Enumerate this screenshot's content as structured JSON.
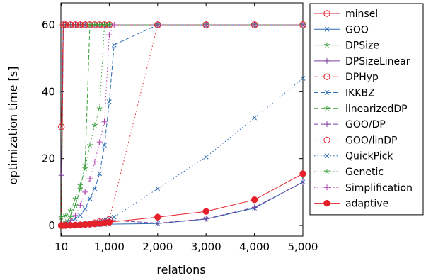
{
  "chart_data": {
    "type": "line",
    "xlabel": "relations",
    "ylabel": "optimization time [s]",
    "xlim": [
      0,
      5000
    ],
    "ylim": [
      0,
      60
    ],
    "x_ticks": [
      10,
      1000,
      2000,
      3000,
      4000,
      5000
    ],
    "x_tick_labels": [
      "10",
      "1,000",
      "2,000",
      "3,000",
      "4,000",
      "5,000"
    ],
    "y_ticks": [
      0,
      20,
      40,
      60
    ],
    "y_tick_labels": [
      "0",
      "20",
      "40",
      "60"
    ],
    "grid": false,
    "legend_position": "right-outside",
    "series": [
      {
        "name": "minsel",
        "color": "#e4202b",
        "dash": "solid",
        "marker": "circle-open",
        "points": [
          [
            10,
            29.5
          ],
          [
            50,
            60
          ],
          [
            100,
            60
          ],
          [
            200,
            60
          ],
          [
            300,
            60
          ],
          [
            400,
            60
          ],
          [
            500,
            60
          ],
          [
            600,
            60
          ],
          [
            700,
            60
          ],
          [
            800,
            60
          ],
          [
            900,
            60
          ],
          [
            1000,
            60
          ],
          [
            2000,
            60
          ],
          [
            3000,
            60
          ],
          [
            4000,
            60
          ],
          [
            5000,
            60
          ]
        ]
      },
      {
        "name": "GOO",
        "color": "#2a6bb3",
        "dash": "solid",
        "marker": "x",
        "points": [
          [
            10,
            0
          ],
          [
            50,
            0
          ],
          [
            100,
            0
          ],
          [
            200,
            0.02
          ],
          [
            300,
            0.05
          ],
          [
            400,
            0.1
          ],
          [
            500,
            0.15
          ],
          [
            600,
            0.2
          ],
          [
            700,
            0.25
          ],
          [
            800,
            0.3
          ],
          [
            900,
            0.35
          ],
          [
            1000,
            0.4
          ],
          [
            2000,
            0.6
          ],
          [
            3000,
            1.9
          ],
          [
            4000,
            5.2
          ],
          [
            5000,
            13
          ]
        ]
      },
      {
        "name": "DPSize",
        "color": "#3a9e3a",
        "dash": "solid",
        "marker": "star",
        "points": [
          [
            10,
            0
          ],
          [
            50,
            60
          ],
          [
            100,
            60
          ],
          [
            200,
            60
          ],
          [
            300,
            60
          ],
          [
            400,
            60
          ],
          [
            500,
            60
          ],
          [
            600,
            60
          ],
          [
            700,
            60
          ],
          [
            800,
            60
          ],
          [
            900,
            60
          ],
          [
            1000,
            60
          ],
          [
            2000,
            60
          ],
          [
            3000,
            60
          ],
          [
            4000,
            60
          ],
          [
            5000,
            60
          ]
        ]
      },
      {
        "name": "DPSizeLinear",
        "color": "#7b3fa0",
        "dash": "solid",
        "marker": "plus",
        "points": [
          [
            10,
            15
          ],
          [
            50,
            60
          ],
          [
            100,
            60
          ],
          [
            200,
            60
          ],
          [
            300,
            60
          ],
          [
            400,
            60
          ],
          [
            500,
            60
          ],
          [
            600,
            60
          ],
          [
            700,
            60
          ],
          [
            800,
            60
          ],
          [
            900,
            60
          ],
          [
            1000,
            60
          ],
          [
            2000,
            60
          ],
          [
            3000,
            60
          ],
          [
            4000,
            60
          ],
          [
            5000,
            60
          ]
        ]
      },
      {
        "name": "DPHyp",
        "color": "#e4202b",
        "dash": "dashed",
        "marker": "circle-open",
        "points": [
          [
            10,
            0.02
          ],
          [
            50,
            60
          ],
          [
            100,
            60
          ],
          [
            200,
            60
          ],
          [
            300,
            60
          ],
          [
            400,
            60
          ],
          [
            500,
            60
          ],
          [
            600,
            60
          ],
          [
            700,
            60
          ],
          [
            800,
            60
          ],
          [
            900,
            60
          ],
          [
            1000,
            60
          ],
          [
            2000,
            60
          ],
          [
            3000,
            60
          ],
          [
            4000,
            60
          ],
          [
            5000,
            60
          ]
        ]
      },
      {
        "name": "IKKBZ",
        "color": "#2a6bb3",
        "dash": "dashed",
        "marker": "x",
        "points": [
          [
            10,
            0
          ],
          [
            100,
            0.6
          ],
          [
            200,
            1.2
          ],
          [
            300,
            2
          ],
          [
            400,
            3
          ],
          [
            500,
            5
          ],
          [
            600,
            8
          ],
          [
            700,
            11
          ],
          [
            800,
            15.5
          ],
          [
            900,
            24
          ],
          [
            1000,
            37
          ],
          [
            1100,
            54
          ],
          [
            2000,
            60
          ],
          [
            3000,
            60
          ],
          [
            4000,
            60
          ],
          [
            5000,
            60
          ]
        ]
      },
      {
        "name": "linearizedDP",
        "color": "#3a9e3a",
        "dash": "dashed",
        "marker": "star",
        "points": [
          [
            10,
            0
          ],
          [
            100,
            1
          ],
          [
            200,
            2.5
          ],
          [
            300,
            6
          ],
          [
            400,
            11
          ],
          [
            500,
            18
          ],
          [
            600,
            60
          ],
          [
            700,
            60
          ],
          [
            800,
            60
          ],
          [
            900,
            60
          ],
          [
            1000,
            60
          ],
          [
            2000,
            60
          ],
          [
            3000,
            60
          ],
          [
            4000,
            60
          ],
          [
            5000,
            60
          ]
        ]
      },
      {
        "name": "GOO/DP",
        "color": "#7b3fa0",
        "dash": "dashed",
        "marker": "plus",
        "points": [
          [
            10,
            0
          ],
          [
            100,
            0.02
          ],
          [
            200,
            0.05
          ],
          [
            300,
            0.1
          ],
          [
            400,
            0.2
          ],
          [
            500,
            0.3
          ],
          [
            600,
            0.5
          ],
          [
            700,
            0.7
          ],
          [
            800,
            1
          ],
          [
            900,
            1.3
          ],
          [
            1000,
            1.6
          ],
          [
            2000,
            0.7
          ],
          [
            3000,
            2
          ],
          [
            4000,
            5.4
          ],
          [
            5000,
            13
          ]
        ]
      },
      {
        "name": "GOO/linDP",
        "color": "#e4202b",
        "dash": "dotted",
        "marker": "circle-open",
        "points": [
          [
            10,
            0
          ],
          [
            100,
            0.02
          ],
          [
            200,
            0.05
          ],
          [
            300,
            0.1
          ],
          [
            400,
            0.2
          ],
          [
            500,
            0.3
          ],
          [
            600,
            0.5
          ],
          [
            700,
            0.8
          ],
          [
            800,
            1.1
          ],
          [
            900,
            1.4
          ],
          [
            1000,
            1.8
          ],
          [
            2000,
            60
          ],
          [
            3000,
            60
          ],
          [
            4000,
            60
          ],
          [
            5000,
            60
          ]
        ]
      },
      {
        "name": "QuickPick",
        "color": "#2a6bb3",
        "dash": "dotted",
        "marker": "x",
        "points": [
          [
            10,
            0
          ],
          [
            100,
            0.1
          ],
          [
            200,
            0.2
          ],
          [
            300,
            0.3
          ],
          [
            400,
            0.4
          ],
          [
            500,
            0.5
          ],
          [
            600,
            0.7
          ],
          [
            700,
            0.9
          ],
          [
            800,
            1.1
          ],
          [
            900,
            1.5
          ],
          [
            1000,
            2
          ],
          [
            1100,
            2.5
          ],
          [
            2000,
            11
          ],
          [
            3000,
            20.5
          ],
          [
            4000,
            32.2
          ],
          [
            5000,
            44
          ]
        ]
      },
      {
        "name": "Genetic",
        "color": "#3a9e3a",
        "dash": "dotted",
        "marker": "star",
        "points": [
          [
            10,
            2.5
          ],
          [
            100,
            3
          ],
          [
            200,
            4.5
          ],
          [
            300,
            8
          ],
          [
            400,
            12
          ],
          [
            500,
            17
          ],
          [
            600,
            24
          ],
          [
            700,
            30
          ],
          [
            800,
            35
          ],
          [
            900,
            60
          ],
          [
            1000,
            60
          ],
          [
            2000,
            60
          ],
          [
            3000,
            60
          ],
          [
            4000,
            60
          ],
          [
            5000,
            60
          ]
        ]
      },
      {
        "name": "Simplification",
        "color": "#b040b0",
        "dash": "dotted",
        "marker": "plus",
        "points": [
          [
            10,
            0
          ],
          [
            100,
            0.5
          ],
          [
            200,
            1.5
          ],
          [
            300,
            3
          ],
          [
            400,
            6
          ],
          [
            500,
            10
          ],
          [
            600,
            14
          ],
          [
            700,
            19
          ],
          [
            800,
            25
          ],
          [
            900,
            31
          ],
          [
            1000,
            57
          ],
          [
            1100,
            60
          ],
          [
            2000,
            60
          ],
          [
            3000,
            60
          ],
          [
            4000,
            60
          ],
          [
            5000,
            60
          ]
        ]
      },
      {
        "name": "adaptive",
        "color": "#e4202b",
        "dash": "solid",
        "marker": "circle-filled",
        "points": [
          [
            10,
            0
          ],
          [
            50,
            0.02
          ],
          [
            100,
            0.05
          ],
          [
            200,
            0.1
          ],
          [
            300,
            0.15
          ],
          [
            400,
            0.2
          ],
          [
            500,
            0.3
          ],
          [
            600,
            0.4
          ],
          [
            700,
            0.5
          ],
          [
            800,
            0.6
          ],
          [
            900,
            0.8
          ],
          [
            1000,
            1
          ],
          [
            2000,
            2.5
          ],
          [
            3000,
            4.2
          ],
          [
            4000,
            7.7
          ],
          [
            5000,
            15.5
          ]
        ]
      }
    ]
  }
}
